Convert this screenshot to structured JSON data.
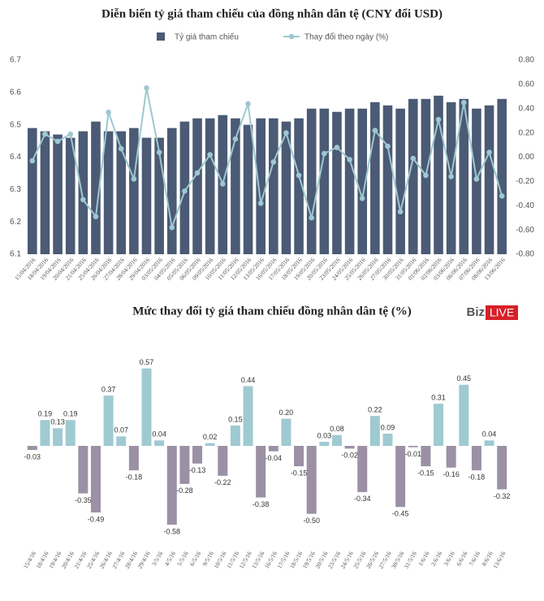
{
  "chart_data": [
    {
      "type": "combo",
      "title": "Diễn biến tỷ giá tham chiếu của đồng nhân dân tệ (CNY đổi USD)",
      "categories": [
        "15/04/2016",
        "18/04/2016",
        "19/04/2016",
        "20/04/2016",
        "21/04/2016",
        "25/04/2016",
        "26/04/2016",
        "27/04/2016",
        "28/04/2016",
        "29/04/2016",
        "03/05/2016",
        "04/05/2016",
        "05/05/2016",
        "06/05/2016",
        "09/05/2016",
        "10/05/2016",
        "11/05/2016",
        "12/05/2016",
        "13/05/2016",
        "16/05/2016",
        "17/05/2016",
        "18/05/2016",
        "19/05/2016",
        "20/05/2016",
        "23/05/2016",
        "24/05/2016",
        "25/05/2016",
        "26/05/2016",
        "27/05/2016",
        "30/05/2016",
        "31/05/2016",
        "01/06/2016",
        "02/06/2016",
        "03/06/2016",
        "06/06/2016",
        "07/06/2016",
        "08/06/2016",
        "13/06/2016"
      ],
      "series": [
        {
          "name": "Tỷ giá tham chiếu",
          "type": "bar",
          "color": "#4b5a75",
          "values": [
            6.49,
            6.48,
            6.47,
            6.46,
            6.48,
            6.51,
            6.48,
            6.48,
            6.49,
            6.46,
            6.46,
            6.49,
            6.51,
            6.52,
            6.52,
            6.53,
            6.52,
            6.5,
            6.52,
            6.52,
            6.51,
            6.52,
            6.55,
            6.55,
            6.54,
            6.55,
            6.55,
            6.57,
            6.56,
            6.55,
            6.58,
            6.58,
            6.59,
            6.57,
            6.58,
            6.55,
            6.56,
            6.58
          ]
        },
        {
          "name": "Thay đổi theo ngày (%)",
          "type": "line",
          "axis": "y2",
          "color": "#9ec8d0",
          "values": [
            -0.03,
            0.19,
            0.13,
            0.19,
            -0.35,
            -0.49,
            0.37,
            0.07,
            -0.18,
            0.57,
            0.04,
            -0.58,
            -0.28,
            -0.13,
            0.02,
            -0.22,
            0.15,
            0.44,
            -0.38,
            -0.04,
            0.2,
            -0.15,
            -0.5,
            0.03,
            0.08,
            -0.02,
            -0.34,
            0.22,
            0.09,
            -0.45,
            -0.01,
            -0.15,
            0.31,
            -0.16,
            0.45,
            -0.18,
            0.04,
            -0.32
          ]
        }
      ],
      "ylim": [
        6.1,
        6.7
      ],
      "yticks": [
        6.1,
        6.2,
        6.3,
        6.4,
        6.5,
        6.6,
        6.7
      ],
      "y2lim": [
        -0.8,
        0.8
      ],
      "y2ticks": [
        {
          "value": -0.8,
          "label": "-0.80"
        },
        {
          "value": -0.6,
          "label": "-0.60"
        },
        {
          "value": -0.4,
          "label": "-0.40"
        },
        {
          "value": -0.2,
          "label": "-0.20"
        },
        {
          "value": 0,
          "label": "0.00"
        },
        {
          "value": 0.2,
          "label": "0.20"
        },
        {
          "value": 0.4,
          "label": "0.40"
        },
        {
          "value": 0.6,
          "label": "0.60"
        },
        {
          "value": 0.8,
          "label": "0.80"
        }
      ],
      "legend": "top"
    },
    {
      "type": "bar",
      "title": "Mức thay đổi tỷ giá tham chiếu  đồng nhân dân tệ (%)",
      "logo": [
        "Biz",
        "LIVE"
      ],
      "categories": [
        "15/4/16",
        "18/4/16",
        "19/4/16",
        "20/4/16",
        "21/4/16",
        "25/4/16",
        "26/4/16",
        "27/4/16",
        "28/4/16",
        "29/4/16",
        "3/5/16",
        "4/5/16",
        "5/5/16",
        "6/5/16",
        "9/5/16",
        "10/5/16",
        "11/5/16",
        "12/5/16",
        "13/5/16",
        "16/5/16",
        "17/5/16",
        "18/5/16",
        "19/5/16",
        "20/5/16",
        "23/5/16",
        "24/5/16",
        "25/5/16",
        "26/5/16",
        "27/5/16",
        "30/5/16",
        "31/5/16",
        "1/6/16",
        "2/6/16",
        "3/6/16",
        "6/6/16",
        "7/6/16",
        "8/6/16",
        "13/6/16"
      ],
      "values": [
        -0.03,
        0.19,
        0.13,
        0.19,
        -0.35,
        -0.49,
        0.37,
        0.07,
        -0.18,
        0.57,
        0.04,
        -0.58,
        -0.28,
        -0.13,
        0.02,
        -0.22,
        0.15,
        0.44,
        -0.38,
        -0.04,
        0.2,
        -0.15,
        -0.5,
        0.03,
        0.08,
        -0.02,
        -0.34,
        0.22,
        0.09,
        -0.45,
        -0.01,
        -0.15,
        0.31,
        -0.16,
        0.45,
        -0.18,
        0.04,
        -0.32
      ],
      "value_labels": [
        "-0.03",
        "0.19",
        "0.13",
        "0.19",
        "-0.35",
        "-0.49",
        "0.37",
        "0.07",
        "-0.18",
        "0.57",
        "0.04",
        "-0.58",
        "-0.28",
        "-0.13",
        "0.02",
        "-0.22",
        "0.15",
        "0.44",
        "-0.38",
        "-0.04",
        "0.20",
        "-0.15",
        "-0.50",
        "0.03",
        "0.08",
        "-0.02",
        "-0.34",
        "0.22",
        "0.09",
        "-0.45",
        "-0.01",
        "-0.15",
        "0.31",
        "-0.16",
        "0.45",
        "-0.18",
        "0.04",
        "-0.32"
      ],
      "positive_color": "#9fcad2",
      "negative_color": "#9b90a4"
    }
  ]
}
